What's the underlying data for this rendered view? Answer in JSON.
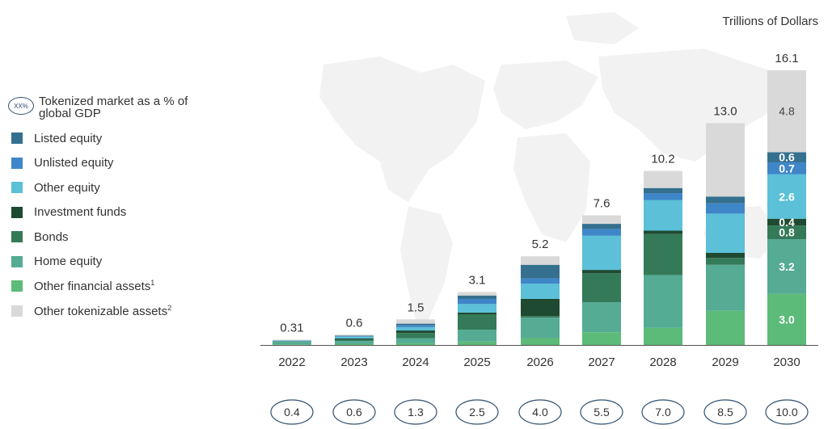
{
  "units": "Trillions of Dollars",
  "legend": {
    "gdp_marker": "XX%",
    "gdp_label": "Tokenized market as a % of global GDP",
    "items": [
      {
        "label": "Listed equity",
        "note": "",
        "color": "#35718f"
      },
      {
        "label": "Unlisted equity",
        "note": "",
        "color": "#3f86c8"
      },
      {
        "label": "Other equity",
        "note": "",
        "color": "#5bc0d8"
      },
      {
        "label": "Investment funds",
        "note": "",
        "color": "#1e4a32"
      },
      {
        "label": "Bonds",
        "note": "",
        "color": "#347a58"
      },
      {
        "label": "Home equity",
        "note": "",
        "color": "#55ab94"
      },
      {
        "label": "Other financial assets",
        "note": "1",
        "color": "#5cbb78"
      },
      {
        "label": "Other tokenizable assets",
        "note": "2",
        "color": "#d9d9d9"
      }
    ]
  },
  "chart_data": {
    "type": "bar",
    "stacked": true,
    "title": "",
    "xlabel": "",
    "ylabel": "Trillions of Dollars",
    "ylim": [
      0,
      16.1
    ],
    "categories": [
      "2022",
      "2023",
      "2024",
      "2025",
      "2026",
      "2027",
      "2028",
      "2029",
      "2030"
    ],
    "totals": [
      "0.31",
      "0.6",
      "1.5",
      "3.1",
      "5.2",
      "7.6",
      "10.2",
      "13.0",
      "16.1"
    ],
    "gdp_percent": [
      "0.4",
      "0.6",
      "1.3",
      "2.5",
      "4.0",
      "5.5",
      "7.0",
      "8.5",
      "10.0"
    ],
    "series": [
      {
        "name": "Other financial assets",
        "values": [
          0.03,
          0.05,
          0.1,
          0.2,
          0.4,
          0.75,
          1.0,
          2.0,
          3.0
        ],
        "labels": [
          "",
          "",
          "",
          "",
          "",
          "",
          "",
          "",
          "3.0"
        ]
      },
      {
        "name": "Home equity",
        "values": [
          0.15,
          0.18,
          0.3,
          0.7,
          1.2,
          1.75,
          3.1,
          2.7,
          3.2
        ],
        "labels": [
          "",
          "",
          "",
          "",
          "",
          "",
          "",
          "",
          "3.2"
        ]
      },
      {
        "name": "Bonds",
        "values": [
          0.03,
          0.1,
          0.3,
          0.9,
          0.1,
          1.7,
          2.4,
          0.4,
          0.8
        ],
        "labels": [
          "",
          "",
          "",
          "",
          "",
          "",
          "",
          "",
          "0.8"
        ]
      },
      {
        "name": "Investment funds",
        "values": [
          0.0,
          0.05,
          0.15,
          0.1,
          1.0,
          0.2,
          0.2,
          0.3,
          0.4
        ],
        "labels": [
          "",
          "",
          "",
          "",
          "",
          "",
          "",
          "",
          "0.4"
        ]
      },
      {
        "name": "Other equity",
        "values": [
          0.03,
          0.1,
          0.2,
          0.5,
          0.9,
          2.0,
          1.8,
          2.3,
          2.6
        ],
        "labels": [
          "",
          "",
          "",
          "",
          "",
          "",
          "",
          "",
          "2.6"
        ]
      },
      {
        "name": "Unlisted equity",
        "values": [
          0.02,
          0.03,
          0.1,
          0.3,
          0.3,
          0.4,
          0.4,
          0.6,
          0.7
        ],
        "labels": [
          "",
          "",
          "",
          "",
          "",
          "",
          "",
          "",
          "0.7"
        ]
      },
      {
        "name": "Listed equity",
        "values": [
          0.0,
          0.04,
          0.1,
          0.2,
          0.8,
          0.3,
          0.3,
          0.4,
          0.6
        ],
        "labels": [
          "",
          "",
          "",
          "",
          "",
          "",
          "",
          "",
          "0.6"
        ]
      },
      {
        "name": "Other tokenizable assets",
        "values": [
          0.05,
          0.05,
          0.25,
          0.2,
          0.5,
          0.5,
          1.0,
          4.3,
          4.8
        ],
        "labels": [
          "",
          "",
          "",
          "",
          "",
          "",
          "",
          "",
          "4.8"
        ]
      }
    ]
  }
}
